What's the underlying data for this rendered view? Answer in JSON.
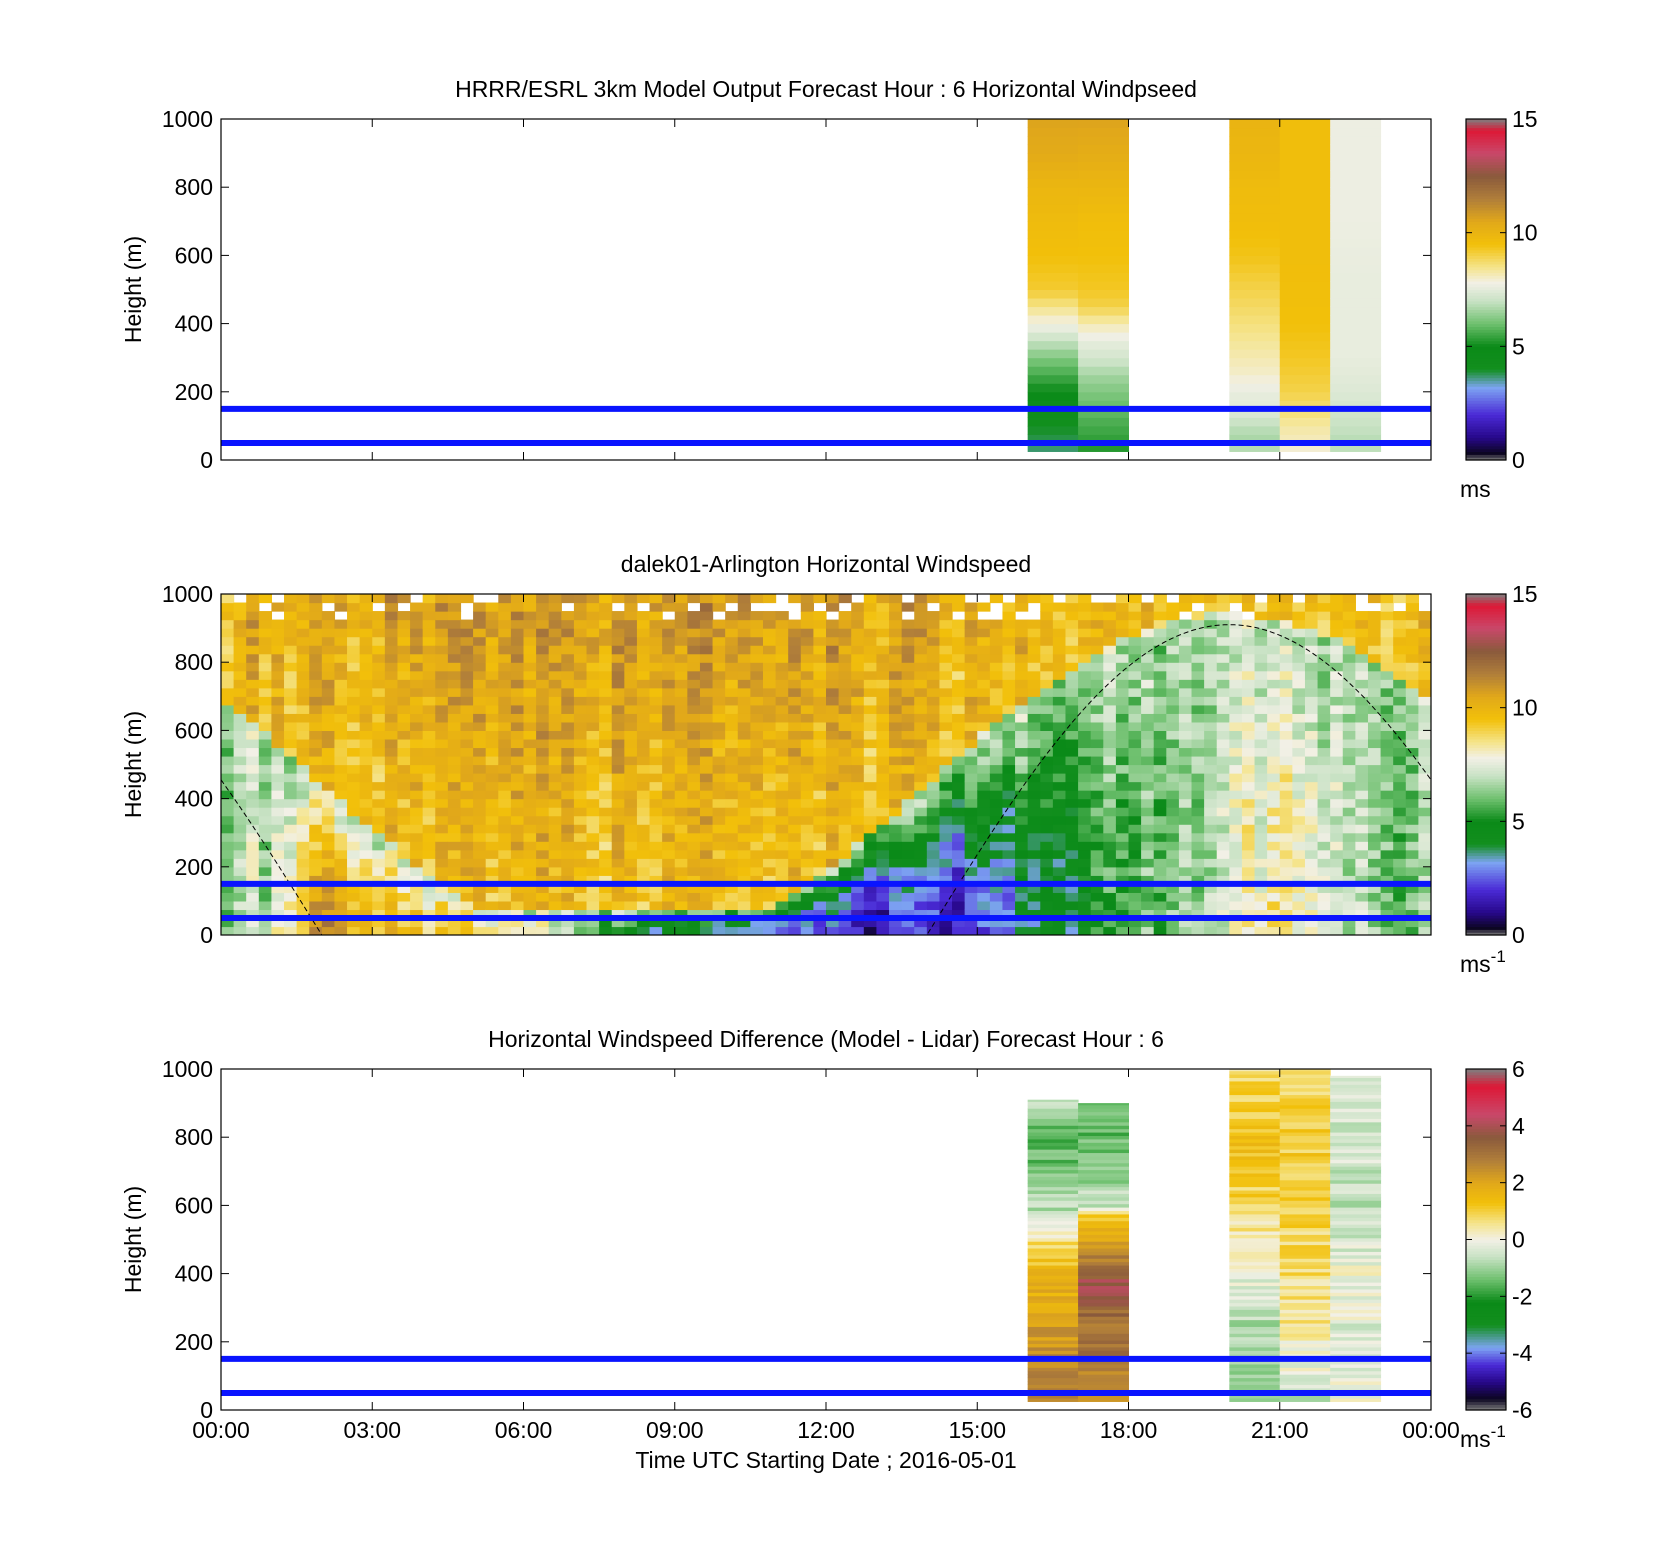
{
  "chart_data": [
    {
      "type": "heatmap",
      "title": "HRRR/ESRL 3km Model Output   Forecast Hour : 6 Horizontal Windpseed",
      "ylabel": "Height (m)",
      "xlabel": "",
      "xlim": [
        0,
        24
      ],
      "ylim": [
        0,
        1000
      ],
      "x_ticks": [
        "00:00",
        "03:00",
        "06:00",
        "09:00",
        "12:00",
        "15:00",
        "18:00",
        "21:00",
        "00:00"
      ],
      "x_tick_values": [
        0,
        3,
        6,
        9,
        12,
        15,
        18,
        21,
        24
      ],
      "y_ticks": [
        "0",
        "200",
        "400",
        "600",
        "800",
        "1000"
      ],
      "y_tick_values": [
        0,
        200,
        400,
        600,
        800,
        1000
      ],
      "show_x_tick_labels": false,
      "colorbar": {
        "min": 0,
        "max": 15,
        "ticks": [
          "0",
          "5",
          "10",
          "15"
        ],
        "tick_values": [
          0,
          5,
          10,
          15
        ],
        "unit": "ms",
        "unit_sup": ""
      },
      "reference_lines_m": [
        50,
        150
      ],
      "columns": [
        {
          "t0": 16.0,
          "t1": 17.0,
          "z0": 25,
          "z1": 1000,
          "levels": [
            [
              25,
              3.6
            ],
            [
              50,
              3.8
            ],
            [
              100,
              4.0
            ],
            [
              150,
              4.4
            ],
            [
              200,
              5.0
            ],
            [
              250,
              5.6
            ],
            [
              300,
              6.2
            ],
            [
              350,
              7.0
            ],
            [
              400,
              7.8
            ],
            [
              450,
              8.5
            ],
            [
              500,
              9.2
            ],
            [
              600,
              9.5
            ],
            [
              700,
              9.7
            ],
            [
              800,
              9.9
            ],
            [
              900,
              10.4
            ],
            [
              1000,
              10.6
            ]
          ]
        },
        {
          "t0": 17.0,
          "t1": 18.0,
          "z0": 25,
          "z1": 1000,
          "levels": [
            [
              25,
              5.2
            ],
            [
              100,
              5.6
            ],
            [
              150,
              5.9
            ],
            [
              200,
              6.2
            ],
            [
              250,
              6.6
            ],
            [
              300,
              7.2
            ],
            [
              350,
              7.6
            ],
            [
              400,
              8.2
            ],
            [
              450,
              9.0
            ],
            [
              500,
              9.3
            ],
            [
              600,
              9.5
            ],
            [
              700,
              9.6
            ],
            [
              800,
              9.9
            ],
            [
              900,
              10.3
            ],
            [
              1000,
              10.6
            ]
          ]
        },
        {
          "t0": 20.0,
          "t1": 21.0,
          "z0": 25,
          "z1": 1000,
          "levels": [
            [
              25,
              7.0
            ],
            [
              50,
              6.6
            ],
            [
              100,
              6.9
            ],
            [
              150,
              7.5
            ],
            [
              200,
              7.6
            ],
            [
              250,
              8.0
            ],
            [
              300,
              8.2
            ],
            [
              400,
              8.6
            ],
            [
              500,
              9.0
            ],
            [
              600,
              9.4
            ],
            [
              700,
              9.6
            ],
            [
              800,
              9.7
            ],
            [
              900,
              9.9
            ],
            [
              1000,
              10.0
            ]
          ]
        },
        {
          "t0": 21.0,
          "t1": 22.0,
          "z0": 25,
          "z1": 1000,
          "levels": [
            [
              25,
              7.8
            ],
            [
              50,
              8.1
            ],
            [
              100,
              8.3
            ],
            [
              150,
              8.7
            ],
            [
              200,
              9.0
            ],
            [
              300,
              9.3
            ],
            [
              400,
              9.5
            ],
            [
              600,
              9.6
            ],
            [
              800,
              9.6
            ],
            [
              1000,
              9.6
            ]
          ]
        },
        {
          "t0": 22.0,
          "t1": 23.0,
          "z0": 25,
          "z1": 1000,
          "levels": [
            [
              25,
              7.0
            ],
            [
              50,
              6.8
            ],
            [
              150,
              7.2
            ],
            [
              200,
              7.4
            ],
            [
              300,
              7.6
            ],
            [
              400,
              7.6
            ],
            [
              500,
              7.6
            ],
            [
              700,
              7.7
            ],
            [
              1000,
              7.7
            ]
          ]
        }
      ]
    },
    {
      "type": "heatmap",
      "title": "dalek01-Arlington  Horizontal Windspeed",
      "ylabel": "Height (m)",
      "xlabel": "",
      "xlim": [
        0,
        24
      ],
      "ylim": [
        0,
        1000
      ],
      "x_ticks": [
        "00:00",
        "03:00",
        "06:00",
        "09:00",
        "12:00",
        "15:00",
        "18:00",
        "21:00",
        "00:00"
      ],
      "x_tick_values": [
        0,
        3,
        6,
        9,
        12,
        15,
        18,
        21,
        24
      ],
      "y_ticks": [
        "0",
        "200",
        "400",
        "600",
        "800",
        "1000"
      ],
      "y_tick_values": [
        0,
        200,
        400,
        600,
        800,
        1000
      ],
      "show_x_tick_labels": false,
      "colorbar": {
        "min": 0,
        "max": 15,
        "ticks": [
          "0",
          "5",
          "10",
          "15"
        ],
        "tick_values": [
          0,
          5,
          10,
          15
        ],
        "unit": "ms",
        "unit_sup": "-1"
      },
      "reference_lines_m": [
        50,
        150
      ],
      "boundary_layer_curve": {
        "style": "dashed",
        "peak_time_h": 20.0,
        "peak_height_m": 910,
        "period_h": 24
      },
      "field_profile": [
        [
          0,
          6.5
        ],
        [
          1,
          7.0
        ],
        [
          1.8,
          10.0
        ],
        [
          2.0,
          11.0
        ],
        [
          3,
          10.0
        ],
        [
          4,
          9.5
        ],
        [
          5,
          9.0
        ],
        [
          6,
          8.2
        ],
        [
          7,
          6.5
        ],
        [
          8,
          5.0
        ],
        [
          9,
          3.5
        ],
        [
          10,
          3.5
        ],
        [
          11,
          3.0
        ],
        [
          12,
          2.0
        ],
        [
          13,
          1.5
        ],
        [
          14,
          1.8
        ],
        [
          15,
          2.2
        ],
        [
          16,
          3.5
        ],
        [
          17,
          4.5
        ],
        [
          18,
          5.5
        ],
        [
          19,
          6.5
        ],
        [
          20,
          7.5
        ],
        [
          21,
          8.5
        ],
        [
          22,
          7.5
        ],
        [
          23,
          6.5
        ],
        [
          24,
          6.5
        ]
      ]
    },
    {
      "type": "heatmap",
      "title": "Horizontal Windspeed Difference (Model - Lidar) Forecast Hour : 6",
      "ylabel": "Height (m)",
      "xlabel": "Time UTC  Starting Date ; 2016-05-01",
      "xlim": [
        0,
        24
      ],
      "ylim": [
        0,
        1000
      ],
      "x_ticks": [
        "00:00",
        "03:00",
        "06:00",
        "09:00",
        "12:00",
        "15:00",
        "18:00",
        "21:00",
        "00:00"
      ],
      "x_tick_values": [
        0,
        3,
        6,
        9,
        12,
        15,
        18,
        21,
        24
      ],
      "y_ticks": [
        "0",
        "200",
        "400",
        "600",
        "800",
        "1000"
      ],
      "y_tick_values": [
        0,
        200,
        400,
        600,
        800,
        1000
      ],
      "show_x_tick_labels": true,
      "colorbar": {
        "min": -6,
        "max": 6,
        "ticks": [
          "-6",
          "-4",
          "-2",
          "0",
          "2",
          "4",
          "6"
        ],
        "tick_values": [
          -6,
          -4,
          -2,
          0,
          2,
          4,
          6
        ],
        "unit": "ms",
        "unit_sup": "-1"
      },
      "reference_lines_m": [
        50,
        150
      ],
      "columns": [
        {
          "t0": 16.0,
          "t1": 17.0,
          "z0": 25,
          "z1": 910,
          "levels": [
            [
              25,
              2.8
            ],
            [
              100,
              2.6
            ],
            [
              200,
              2.3
            ],
            [
              300,
              2.0
            ],
            [
              400,
              1.6
            ],
            [
              450,
              1.2
            ],
            [
              500,
              0.6
            ],
            [
              550,
              -0.3
            ],
            [
              600,
              -0.8
            ],
            [
              700,
              -1.3
            ],
            [
              800,
              -1.6
            ],
            [
              850,
              -1.2
            ],
            [
              900,
              -0.4
            ]
          ]
        },
        {
          "t0": 17.0,
          "t1": 18.0,
          "z0": 25,
          "z1": 900,
          "levels": [
            [
              25,
              2.4
            ],
            [
              100,
              2.8
            ],
            [
              200,
              3.0
            ],
            [
              300,
              3.2
            ],
            [
              360,
              4.2
            ],
            [
              400,
              3.4
            ],
            [
              450,
              2.8
            ],
            [
              500,
              2.0
            ],
            [
              560,
              1.4
            ],
            [
              600,
              -0.5
            ],
            [
              700,
              -1.2
            ],
            [
              800,
              -1.5
            ],
            [
              900,
              -1.3
            ]
          ]
        },
        {
          "t0": 20.0,
          "t1": 21.0,
          "z0": 25,
          "z1": 1000,
          "levels": [
            [
              25,
              -0.7
            ],
            [
              100,
              -0.9
            ],
            [
              200,
              -1.0
            ],
            [
              300,
              -0.6
            ],
            [
              400,
              -0.2
            ],
            [
              500,
              0.3
            ],
            [
              600,
              0.8
            ],
            [
              700,
              1.2
            ],
            [
              800,
              1.4
            ],
            [
              900,
              0.9
            ],
            [
              1000,
              0.7
            ]
          ]
        },
        {
          "t0": 21.0,
          "t1": 22.0,
          "z0": 25,
          "z1": 1000,
          "levels": [
            [
              25,
              -0.6
            ],
            [
              100,
              -0.2
            ],
            [
              200,
              0.3
            ],
            [
              300,
              0.6
            ],
            [
              400,
              0.7
            ],
            [
              500,
              0.8
            ],
            [
              600,
              0.9
            ],
            [
              700,
              1.0
            ],
            [
              800,
              1.1
            ],
            [
              900,
              0.9
            ],
            [
              1000,
              0.8
            ]
          ]
        },
        {
          "t0": 22.0,
          "t1": 23.0,
          "z0": 25,
          "z1": 980,
          "levels": [
            [
              25,
              -0.1
            ],
            [
              100,
              -0.2
            ],
            [
              200,
              -0.4
            ],
            [
              300,
              -0.1
            ],
            [
              400,
              0.0
            ],
            [
              500,
              -0.4
            ],
            [
              600,
              -0.6
            ],
            [
              700,
              -0.5
            ],
            [
              800,
              -0.4
            ],
            [
              900,
              -0.5
            ],
            [
              980,
              -0.3
            ]
          ]
        }
      ]
    }
  ],
  "colors": {
    "reference_line": "#0a14ff",
    "speed_colormap": [
      [
        0.0,
        "#7f7f7f"
      ],
      [
        0.3,
        "#0c0620"
      ],
      [
        1.0,
        "#27088a"
      ],
      [
        2.0,
        "#4a2ad6"
      ],
      [
        3.2,
        "#7da4f2"
      ],
      [
        4.0,
        "#128f1e"
      ],
      [
        5.0,
        "#0a8a18"
      ],
      [
        6.0,
        "#6ec06e"
      ],
      [
        7.0,
        "#c8e2c4"
      ],
      [
        7.8,
        "#f2f0e6"
      ],
      [
        8.5,
        "#f5e48a"
      ],
      [
        9.5,
        "#f2c00a"
      ],
      [
        10.5,
        "#e1a81a"
      ],
      [
        11.5,
        "#b07e3a"
      ],
      [
        12.5,
        "#8a5a3c"
      ],
      [
        13.5,
        "#c9486a"
      ],
      [
        14.5,
        "#dd1836"
      ],
      [
        15.0,
        "#7f7f7f"
      ]
    ],
    "difference_colormap": [
      [
        -6.0,
        "#7f7f7f"
      ],
      [
        -5.6,
        "#0c0620"
      ],
      [
        -5.0,
        "#27088a"
      ],
      [
        -4.4,
        "#4a2ad6"
      ],
      [
        -3.8,
        "#7da4f2"
      ],
      [
        -3.0,
        "#128f1e"
      ],
      [
        -2.2,
        "#0a8a18"
      ],
      [
        -1.4,
        "#6ec06e"
      ],
      [
        -0.6,
        "#c8e2c4"
      ],
      [
        0.0,
        "#f2f0e6"
      ],
      [
        0.6,
        "#f5e48a"
      ],
      [
        1.3,
        "#f2c00a"
      ],
      [
        2.0,
        "#e1a81a"
      ],
      [
        2.8,
        "#b07e3a"
      ],
      [
        3.6,
        "#8a5a3c"
      ],
      [
        4.4,
        "#c9486a"
      ],
      [
        5.4,
        "#dd1836"
      ],
      [
        6.0,
        "#7f7f7f"
      ]
    ]
  }
}
